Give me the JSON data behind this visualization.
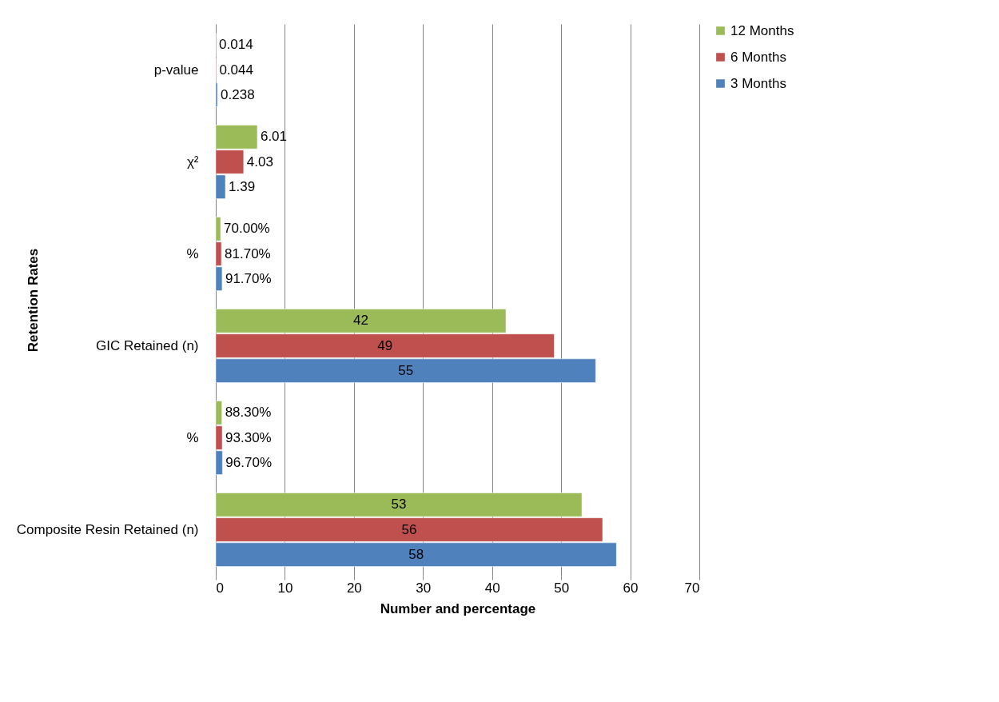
{
  "chart_data": {
    "type": "bar",
    "orientation": "horizontal",
    "ylabel": "Retention Rates",
    "xlabel": "Number and percentage",
    "categories": [
      "p-value",
      "χ²",
      "%",
      "GIC Retained (n)",
      "%",
      "Composite Resin Retained (n)"
    ],
    "series": [
      {
        "name": "12 Months",
        "color": "#9bbb59",
        "values": [
          0.014,
          6.01,
          0.7,
          42,
          0.883,
          53
        ],
        "value_labels": [
          "0.014",
          "6.01",
          "70.00%",
          "42",
          "88.30%",
          "53"
        ]
      },
      {
        "name": "6 Months",
        "color": "#c0504d",
        "values": [
          0.044,
          4.03,
          0.817,
          49,
          0.933,
          56
        ],
        "value_labels": [
          "0.044",
          "4.03",
          "81.70%",
          "49",
          "93.30%",
          "56"
        ]
      },
      {
        "name": "3 Months",
        "color": "#4f81bd",
        "values": [
          0.238,
          1.39,
          0.917,
          55,
          0.967,
          58
        ],
        "value_labels": [
          "0.238",
          "1.39",
          "91.70%",
          "55",
          "96.70%",
          "58"
        ]
      }
    ],
    "xlim": [
      0,
      70
    ],
    "xticks": [
      0,
      10,
      20,
      30,
      40,
      50,
      60,
      70
    ],
    "grid": "x",
    "legend": "right"
  }
}
